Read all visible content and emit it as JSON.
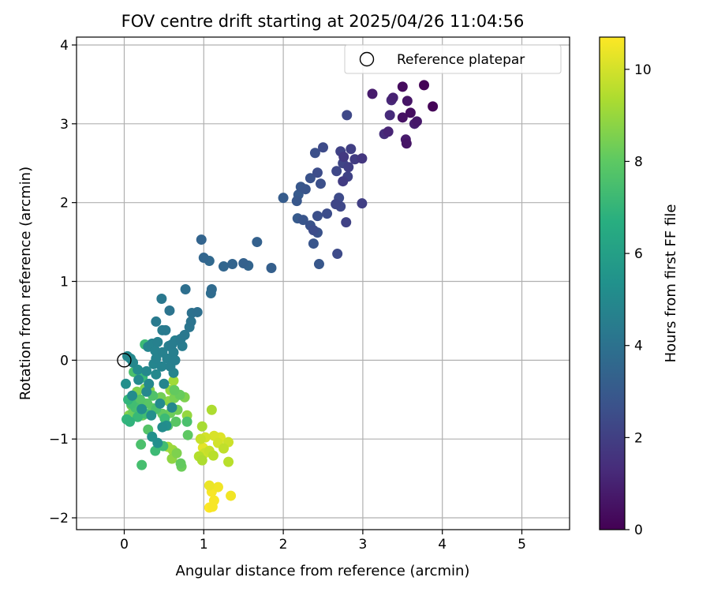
{
  "chart_data": {
    "type": "scatter",
    "title": "FOV centre drift starting at 2025/04/26 11:04:56",
    "xlabel": "Angular distance from reference (arcmin)",
    "ylabel": "Rotation from reference (arcmin)",
    "xlim": [
      -0.6,
      5.6
    ],
    "ylim": [
      -2.15,
      4.1
    ],
    "x_ticks": [
      0,
      1,
      2,
      3,
      4,
      5
    ],
    "y_ticks": [
      -2,
      -1,
      0,
      1,
      2,
      3,
      4
    ],
    "grid": true,
    "legend": {
      "position": "top-right",
      "entries": [
        "Reference platepar"
      ]
    },
    "reference_point": {
      "x": 0,
      "y": 0
    },
    "colorbar": {
      "label": "Hours from first FF file",
      "colormap": "viridis",
      "range": [
        0,
        10.7
      ],
      "ticks": [
        0,
        2,
        4,
        6,
        8,
        10
      ]
    },
    "series": [
      {
        "points": [
          {
            "x": 3.77,
            "y": 3.49,
            "h": 0.05
          },
          {
            "x": 3.5,
            "y": 3.47,
            "h": 0.3
          },
          {
            "x": 3.88,
            "y": 3.22,
            "h": 0.1
          },
          {
            "x": 3.12,
            "y": 3.38,
            "h": 0.8
          },
          {
            "x": 3.36,
            "y": 3.3,
            "h": 1.2
          },
          {
            "x": 3.38,
            "y": 3.33,
            "h": 1.0
          },
          {
            "x": 3.56,
            "y": 3.29,
            "h": 0.6
          },
          {
            "x": 3.5,
            "y": 3.08,
            "h": 0.5
          },
          {
            "x": 3.6,
            "y": 3.14,
            "h": 0.4
          },
          {
            "x": 3.34,
            "y": 3.11,
            "h": 1.3
          },
          {
            "x": 3.65,
            "y": 3.0,
            "h": 0.9
          },
          {
            "x": 3.68,
            "y": 3.03,
            "h": 0.7
          },
          {
            "x": 3.32,
            "y": 2.9,
            "h": 1.1
          },
          {
            "x": 3.27,
            "y": 2.87,
            "h": 1.4
          },
          {
            "x": 3.54,
            "y": 2.8,
            "h": 0.8
          },
          {
            "x": 3.55,
            "y": 2.75,
            "h": 0.6
          },
          {
            "x": 2.8,
            "y": 3.11,
            "h": 2.3
          },
          {
            "x": 2.85,
            "y": 2.68,
            "h": 2.0
          },
          {
            "x": 2.72,
            "y": 2.65,
            "h": 2.1
          },
          {
            "x": 2.5,
            "y": 2.7,
            "h": 2.4
          },
          {
            "x": 2.4,
            "y": 2.63,
            "h": 2.6
          },
          {
            "x": 2.76,
            "y": 2.58,
            "h": 1.8
          },
          {
            "x": 2.9,
            "y": 2.55,
            "h": 1.9
          },
          {
            "x": 2.99,
            "y": 2.56,
            "h": 1.7
          },
          {
            "x": 2.75,
            "y": 2.5,
            "h": 2.2
          },
          {
            "x": 2.82,
            "y": 2.45,
            "h": 2.0
          },
          {
            "x": 2.67,
            "y": 2.4,
            "h": 2.3
          },
          {
            "x": 2.81,
            "y": 2.33,
            "h": 2.1
          },
          {
            "x": 2.43,
            "y": 2.38,
            "h": 2.5
          },
          {
            "x": 2.34,
            "y": 2.31,
            "h": 2.7
          },
          {
            "x": 2.75,
            "y": 2.27,
            "h": 1.9
          },
          {
            "x": 2.47,
            "y": 2.24,
            "h": 2.6
          },
          {
            "x": 2.22,
            "y": 2.2,
            "h": 2.9
          },
          {
            "x": 2.28,
            "y": 2.17,
            "h": 2.8
          },
          {
            "x": 2.19,
            "y": 2.1,
            "h": 3.0
          },
          {
            "x": 2.0,
            "y": 2.06,
            "h": 3.1
          },
          {
            "x": 2.7,
            "y": 2.06,
            "h": 2.4
          },
          {
            "x": 2.17,
            "y": 2.02,
            "h": 2.9
          },
          {
            "x": 2.66,
            "y": 1.98,
            "h": 2.2
          },
          {
            "x": 2.72,
            "y": 1.95,
            "h": 2.3
          },
          {
            "x": 2.99,
            "y": 1.99,
            "h": 2.0
          },
          {
            "x": 2.55,
            "y": 1.86,
            "h": 2.5
          },
          {
            "x": 2.43,
            "y": 1.83,
            "h": 2.6
          },
          {
            "x": 2.18,
            "y": 1.8,
            "h": 3.0
          },
          {
            "x": 2.25,
            "y": 1.78,
            "h": 2.8
          },
          {
            "x": 2.79,
            "y": 1.75,
            "h": 2.1
          },
          {
            "x": 2.34,
            "y": 1.71,
            "h": 2.7
          },
          {
            "x": 2.38,
            "y": 1.65,
            "h": 2.5
          },
          {
            "x": 2.43,
            "y": 1.62,
            "h": 2.7
          },
          {
            "x": 2.38,
            "y": 1.48,
            "h": 2.8
          },
          {
            "x": 2.68,
            "y": 1.35,
            "h": 2.4
          },
          {
            "x": 2.45,
            "y": 1.22,
            "h": 2.9
          },
          {
            "x": 1.67,
            "y": 1.5,
            "h": 3.3
          },
          {
            "x": 0.97,
            "y": 1.53,
            "h": 3.4
          },
          {
            "x": 1.0,
            "y": 1.3,
            "h": 3.5
          },
          {
            "x": 1.07,
            "y": 1.26,
            "h": 3.6
          },
          {
            "x": 1.25,
            "y": 1.19,
            "h": 3.5
          },
          {
            "x": 1.36,
            "y": 1.22,
            "h": 3.4
          },
          {
            "x": 1.5,
            "y": 1.23,
            "h": 3.3
          },
          {
            "x": 1.56,
            "y": 1.2,
            "h": 3.4
          },
          {
            "x": 1.85,
            "y": 1.17,
            "h": 3.2
          },
          {
            "x": 1.1,
            "y": 0.9,
            "h": 3.7
          },
          {
            "x": 1.09,
            "y": 0.85,
            "h": 3.8
          },
          {
            "x": 0.77,
            "y": 0.9,
            "h": 3.9
          },
          {
            "x": 0.47,
            "y": 0.78,
            "h": 4.3
          },
          {
            "x": 0.57,
            "y": 0.63,
            "h": 4.1
          },
          {
            "x": 0.85,
            "y": 0.6,
            "h": 4.0
          },
          {
            "x": 0.92,
            "y": 0.61,
            "h": 3.9
          },
          {
            "x": 0.84,
            "y": 0.49,
            "h": 4.1
          },
          {
            "x": 0.82,
            "y": 0.42,
            "h": 4.2
          },
          {
            "x": 0.4,
            "y": 0.49,
            "h": 4.4
          },
          {
            "x": 0.48,
            "y": 0.38,
            "h": 4.5
          },
          {
            "x": 0.52,
            "y": 0.38,
            "h": 4.4
          },
          {
            "x": 0.76,
            "y": 0.32,
            "h": 4.3
          },
          {
            "x": 0.71,
            "y": 0.27,
            "h": 4.4
          },
          {
            "x": 0.64,
            "y": 0.25,
            "h": 4.6
          },
          {
            "x": 0.42,
            "y": 0.23,
            "h": 4.7
          },
          {
            "x": 0.35,
            "y": 0.21,
            "h": 4.8
          },
          {
            "x": 0.56,
            "y": 0.18,
            "h": 4.6
          },
          {
            "x": 0.6,
            "y": 0.2,
            "h": 4.5
          },
          {
            "x": 0.73,
            "y": 0.18,
            "h": 4.5
          },
          {
            "x": 0.3,
            "y": 0.17,
            "h": 4.9
          },
          {
            "x": 0.39,
            "y": 0.12,
            "h": 4.8
          },
          {
            "x": 0.48,
            "y": 0.1,
            "h": 4.7
          },
          {
            "x": 0.62,
            "y": 0.1,
            "h": 4.6
          },
          {
            "x": 0.4,
            "y": 0.02,
            "h": 4.8
          },
          {
            "x": 0.54,
            "y": 0.02,
            "h": 4.7
          },
          {
            "x": 0.64,
            "y": 0.0,
            "h": 4.6
          },
          {
            "x": 0.04,
            "y": 0.05,
            "h": 5.0
          },
          {
            "x": 0.08,
            "y": 0.02,
            "h": 5.1
          },
          {
            "x": 0.11,
            "y": -0.03,
            "h": 5.0
          },
          {
            "x": 0.37,
            "y": -0.05,
            "h": 4.9
          },
          {
            "x": 0.47,
            "y": -0.08,
            "h": 4.8
          },
          {
            "x": 0.58,
            "y": -0.08,
            "h": 4.7
          },
          {
            "x": 0.17,
            "y": -0.12,
            "h": 5.2
          },
          {
            "x": 0.28,
            "y": -0.14,
            "h": 5.0
          },
          {
            "x": 0.4,
            "y": -0.18,
            "h": 5.0
          },
          {
            "x": 0.62,
            "y": -0.16,
            "h": 4.9
          },
          {
            "x": 0.02,
            "y": -0.3,
            "h": 5.3
          },
          {
            "x": 0.18,
            "y": -0.25,
            "h": 5.1
          },
          {
            "x": 0.31,
            "y": -0.3,
            "h": 5.0
          },
          {
            "x": 0.5,
            "y": -0.3,
            "h": 4.9
          },
          {
            "x": 0.1,
            "y": -0.45,
            "h": 5.2
          },
          {
            "x": 0.28,
            "y": -0.4,
            "h": 5.0
          },
          {
            "x": 0.45,
            "y": -0.55,
            "h": 5.1
          },
          {
            "x": 0.6,
            "y": -0.6,
            "h": 5.0
          },
          {
            "x": 0.22,
            "y": -0.62,
            "h": 5.3
          },
          {
            "x": 0.34,
            "y": -0.7,
            "h": 5.3
          },
          {
            "x": 0.48,
            "y": -0.85,
            "h": 5.2
          },
          {
            "x": 0.35,
            "y": -0.97,
            "h": 5.4
          },
          {
            "x": 0.42,
            "y": -1.05,
            "h": 5.3
          },
          {
            "x": 0.53,
            "y": -0.83,
            "h": 5.3
          },
          {
            "x": 0.26,
            "y": 0.2,
            "h": 7.3
          },
          {
            "x": 0.12,
            "y": -0.15,
            "h": 7.6
          },
          {
            "x": 0.23,
            "y": -0.22,
            "h": 7.2
          },
          {
            "x": 0.05,
            "y": -0.5,
            "h": 7.0
          },
          {
            "x": 0.09,
            "y": -0.55,
            "h": 7.4
          },
          {
            "x": 0.14,
            "y": -0.6,
            "h": 7.5
          },
          {
            "x": 0.17,
            "y": -0.72,
            "h": 7.2
          },
          {
            "x": 0.03,
            "y": -0.75,
            "h": 7.0
          },
          {
            "x": 0.07,
            "y": -0.78,
            "h": 6.9
          },
          {
            "x": 0.2,
            "y": -0.5,
            "h": 7.8
          },
          {
            "x": 0.29,
            "y": -0.55,
            "h": 7.9
          },
          {
            "x": 0.36,
            "y": -0.45,
            "h": 7.7
          },
          {
            "x": 0.4,
            "y": -0.62,
            "h": 7.6
          },
          {
            "x": 0.27,
            "y": -0.68,
            "h": 7.4
          },
          {
            "x": 0.3,
            "y": -0.88,
            "h": 7.8
          },
          {
            "x": 0.21,
            "y": -1.07,
            "h": 7.6
          },
          {
            "x": 0.22,
            "y": -1.33,
            "h": 7.5
          },
          {
            "x": 0.39,
            "y": -1.15,
            "h": 7.3
          },
          {
            "x": 0.49,
            "y": -1.09,
            "h": 7.4
          },
          {
            "x": 0.55,
            "y": -0.83,
            "h": 7.9
          },
          {
            "x": 0.51,
            "y": -0.74,
            "h": 7.3
          },
          {
            "x": 0.65,
            "y": -0.78,
            "h": 7.9
          },
          {
            "x": 0.79,
            "y": -0.78,
            "h": 7.6
          },
          {
            "x": 0.8,
            "y": -0.95,
            "h": 8.0
          },
          {
            "x": 0.71,
            "y": -1.31,
            "h": 8.1
          },
          {
            "x": 0.72,
            "y": -1.35,
            "h": 8.3
          },
          {
            "x": 0.66,
            "y": -1.18,
            "h": 8.6
          },
          {
            "x": 0.6,
            "y": -1.25,
            "h": 8.9
          },
          {
            "x": 0.61,
            "y": -1.14,
            "h": 9.1
          },
          {
            "x": 0.55,
            "y": -1.1,
            "h": 9.2
          },
          {
            "x": 0.16,
            "y": -0.4,
            "h": 8.6
          },
          {
            "x": 0.26,
            "y": -0.36,
            "h": 8.7
          },
          {
            "x": 0.32,
            "y": -0.38,
            "h": 8.9
          },
          {
            "x": 0.46,
            "y": -0.47,
            "h": 8.4
          },
          {
            "x": 0.56,
            "y": -0.52,
            "h": 8.8
          },
          {
            "x": 0.63,
            "y": -0.48,
            "h": 8.5
          },
          {
            "x": 0.7,
            "y": -0.44,
            "h": 8.2
          },
          {
            "x": 0.76,
            "y": -0.47,
            "h": 8.6
          },
          {
            "x": 0.67,
            "y": -0.63,
            "h": 8.4
          },
          {
            "x": 0.58,
            "y": -0.67,
            "h": 8.3
          },
          {
            "x": 0.48,
            "y": -0.68,
            "h": 8.1
          },
          {
            "x": 0.36,
            "y": -0.61,
            "h": 8.0
          },
          {
            "x": 0.26,
            "y": -0.55,
            "h": 8.2
          },
          {
            "x": 0.23,
            "y": -0.7,
            "h": 8.4
          },
          {
            "x": 0.11,
            "y": -0.66,
            "h": 8.3
          },
          {
            "x": 0.09,
            "y": -0.57,
            "h": 8.5
          },
          {
            "x": 0.06,
            "y": -0.7,
            "h": 8.7
          },
          {
            "x": 0.58,
            "y": -0.38,
            "h": 9.0
          },
          {
            "x": 0.62,
            "y": -0.26,
            "h": 9.2
          },
          {
            "x": 0.79,
            "y": -0.7,
            "h": 9.0
          },
          {
            "x": 0.63,
            "y": -0.38,
            "h": 8.1
          },
          {
            "x": 0.98,
            "y": -0.84,
            "h": 9.3
          },
          {
            "x": 1.1,
            "y": -0.63,
            "h": 9.4
          },
          {
            "x": 0.96,
            "y": -1.0,
            "h": 9.8
          },
          {
            "x": 1.02,
            "y": -0.98,
            "h": 10.0
          },
          {
            "x": 1.13,
            "y": -0.96,
            "h": 10.1
          },
          {
            "x": 1.21,
            "y": -0.98,
            "h": 10.2
          },
          {
            "x": 1.18,
            "y": -1.05,
            "h": 10.0
          },
          {
            "x": 1.31,
            "y": -1.04,
            "h": 9.9
          },
          {
            "x": 0.99,
            "y": -1.11,
            "h": 10.3
          },
          {
            "x": 1.07,
            "y": -1.15,
            "h": 9.8
          },
          {
            "x": 1.12,
            "y": -1.21,
            "h": 9.6
          },
          {
            "x": 1.25,
            "y": -1.12,
            "h": 9.7
          },
          {
            "x": 0.94,
            "y": -1.22,
            "h": 9.5
          },
          {
            "x": 1.01,
            "y": -1.18,
            "h": 9.9
          },
          {
            "x": 0.98,
            "y": -1.27,
            "h": 9.4
          },
          {
            "x": 1.31,
            "y": -1.29,
            "h": 9.6
          },
          {
            "x": 1.07,
            "y": -1.59,
            "h": 10.4
          },
          {
            "x": 1.18,
            "y": -1.61,
            "h": 10.5
          },
          {
            "x": 1.1,
            "y": -1.67,
            "h": 10.6
          },
          {
            "x": 1.34,
            "y": -1.72,
            "h": 10.5
          },
          {
            "x": 1.13,
            "y": -1.78,
            "h": 10.6
          },
          {
            "x": 1.07,
            "y": -1.87,
            "h": 10.7
          },
          {
            "x": 1.11,
            "y": -1.86,
            "h": 10.6
          }
        ]
      }
    ]
  }
}
